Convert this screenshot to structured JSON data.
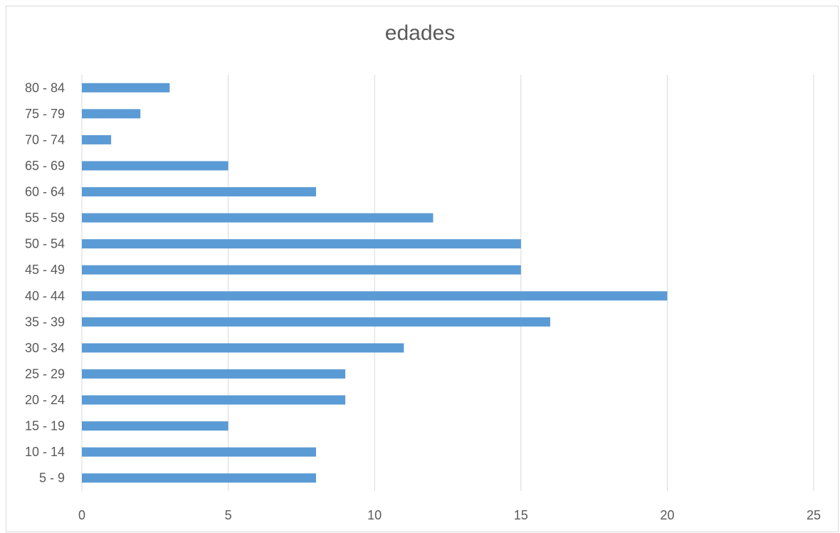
{
  "chart_data": {
    "type": "bar",
    "orientation": "horizontal",
    "title": "edades",
    "xlabel": "",
    "ylabel": "",
    "categories": [
      "5 - 9",
      "10 - 14",
      "15 - 19",
      "20 - 24",
      "25 - 29",
      "30 - 34",
      "35 - 39",
      "40 - 44",
      "45 - 49",
      "50 - 54",
      "55 - 59",
      "60 - 64",
      "65 - 69",
      "70 - 74",
      "75 - 79",
      "80 - 84"
    ],
    "values": [
      8,
      8,
      5,
      9,
      9,
      11,
      16,
      20,
      15,
      15,
      12,
      8,
      5,
      1,
      2,
      3
    ],
    "xlim": [
      0,
      25
    ],
    "xticks": [
      0,
      5,
      10,
      15,
      20,
      25
    ],
    "grid": "vertical",
    "legend": "none",
    "bar_color": "#5b9bd5",
    "grid_color": "#d9d9d9",
    "text_color": "#595959"
  }
}
